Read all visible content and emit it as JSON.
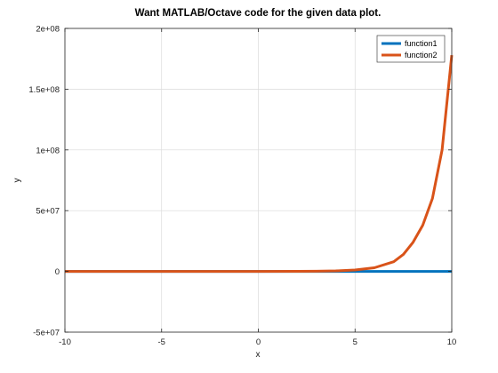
{
  "chart_data": {
    "type": "line",
    "title": "Want MATLAB/Octave code for the given data plot.",
    "xlabel": "x",
    "ylabel": "y",
    "xlim": [
      -10,
      10
    ],
    "ylim": [
      -50000000,
      200000000
    ],
    "x_ticks": [
      -10,
      -5,
      0,
      5,
      10
    ],
    "x_tick_labels": [
      "-10",
      "-5",
      "0",
      "5",
      "10"
    ],
    "y_ticks": [
      -50000000,
      0,
      50000000,
      100000000,
      150000000,
      200000000
    ],
    "y_tick_labels": [
      "-5e+07",
      "0",
      "5e+07",
      "1e+08",
      "1.5e+08",
      "2e+08"
    ],
    "grid": true,
    "legend_position": "top-right",
    "series": [
      {
        "name": "function1",
        "color": "#0072BD",
        "x": [
          -10,
          -5,
          0,
          5,
          10
        ],
        "y": [
          0,
          0,
          0,
          0,
          0
        ]
      },
      {
        "name": "function2",
        "color": "#D95319",
        "x": [
          -10,
          -5,
          0,
          2,
          3,
          4,
          5,
          6,
          7,
          7.5,
          8,
          8.5,
          9,
          9.5,
          10
        ],
        "y": [
          0,
          0,
          0,
          30000,
          140000,
          400000,
          1200000,
          3000000,
          8000000,
          14000000,
          24000000,
          38000000,
          60000000,
          100000000,
          178000000
        ]
      }
    ]
  }
}
